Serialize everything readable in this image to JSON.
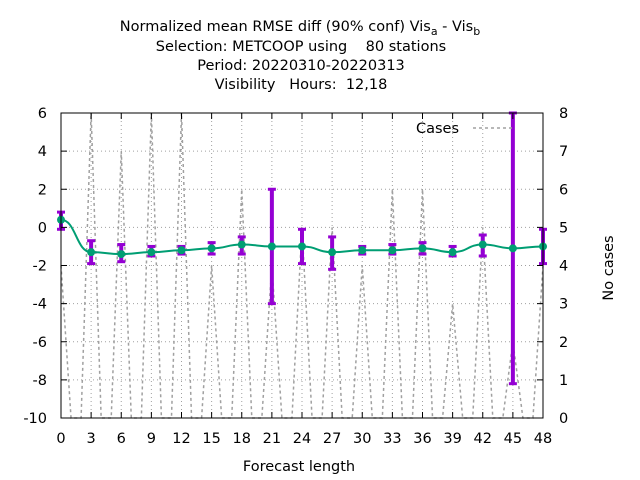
{
  "chart_data": {
    "type": "line",
    "title_lines": [
      {
        "main": "Normalized mean RMSE diff (90% conf) Vis",
        "sub_a": "a",
        "mid": " - Vis",
        "sub_b": "b"
      },
      {
        "text": "Selection: METCOOP using    80 stations"
      },
      {
        "text": "Period: 20220310-20220313"
      },
      {
        "text": "Visibility   Hours:  12,18"
      }
    ],
    "xlabel": "Forecast length",
    "y2label": "No cases",
    "xlim": [
      0,
      48
    ],
    "ylim": [
      -10,
      6
    ],
    "y2lim": [
      0,
      8
    ],
    "x_ticks": [
      "0",
      "3",
      "6",
      "9",
      "12",
      "15",
      "18",
      "21",
      "24",
      "27",
      "30",
      "33",
      "36",
      "39",
      "42",
      "45",
      "48"
    ],
    "y_ticks": [
      "6",
      "4",
      "2",
      "0",
      "-2",
      "-4",
      "-6",
      "-8",
      "-10"
    ],
    "y2_ticks": [
      "8",
      "7",
      "6",
      "5",
      "4",
      "3",
      "2",
      "1",
      "0"
    ],
    "grid": true,
    "legend": {
      "position": "top-right",
      "label": "Cases"
    },
    "colors": {
      "diff": "#009e73",
      "errorbar": "#9400d3",
      "cases": "#a0a0a0"
    },
    "series": [
      {
        "x": [
          0,
          3,
          6,
          9,
          12,
          15,
          18,
          21,
          24,
          27,
          30,
          33,
          36,
          39,
          42,
          45,
          48
        ],
        "values": [
          0.4,
          -1.3,
          -1.4,
          -1.3,
          -1.2,
          -1.1,
          -0.9,
          -1.0,
          -1.0,
          -1.3,
          -1.2,
          -1.2,
          -1.1,
          -1.3,
          -0.9,
          -1.1,
          -1.0
        ],
        "err_low": [
          -0.1,
          -1.9,
          -1.8,
          -1.5,
          -1.4,
          -1.4,
          -1.4,
          -4.0,
          -1.9,
          -2.2,
          -1.4,
          -1.4,
          -1.4,
          -1.5,
          -1.5,
          -8.2,
          -1.9
        ],
        "err_high": [
          0.8,
          -0.7,
          -0.9,
          -1.0,
          -1.0,
          -0.8,
          -0.5,
          2.0,
          -0.1,
          -0.5,
          -1.0,
          -0.9,
          -0.8,
          -1.0,
          -0.4,
          6.0,
          -0.1
        ]
      }
    ],
    "cases": {
      "name": "Cases",
      "x": [
        0,
        1,
        2,
        3,
        4,
        5,
        6,
        7,
        8,
        9,
        10,
        11,
        12,
        13,
        14,
        15,
        16,
        17,
        18,
        19,
        20,
        21,
        22,
        23,
        24,
        25,
        26,
        27,
        28,
        29,
        30,
        31,
        32,
        33,
        34,
        35,
        36,
        37,
        38,
        39,
        40,
        41,
        42,
        43,
        44,
        45,
        46,
        47,
        48
      ],
      "values": [
        4,
        0,
        0,
        8,
        0,
        0,
        7,
        0,
        0,
        8,
        0,
        0,
        8,
        0,
        0,
        4,
        0,
        0,
        6,
        0,
        0,
        4,
        0,
        0,
        5,
        0,
        0,
        5,
        0,
        0,
        4,
        0,
        0,
        6,
        0,
        0,
        6,
        0,
        0,
        3,
        0,
        0,
        5,
        0,
        0,
        2,
        0,
        0,
        4
      ]
    }
  }
}
